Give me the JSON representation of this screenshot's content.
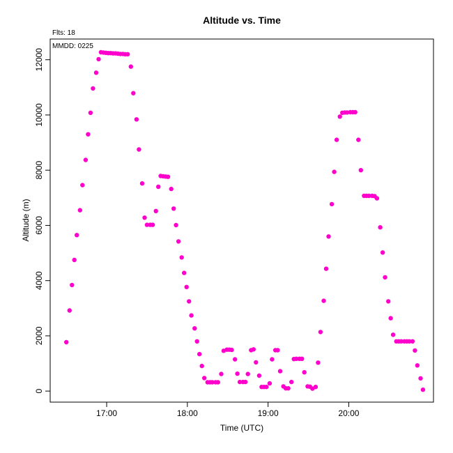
{
  "chart_data": {
    "type": "scatter",
    "title": "Altitude  vs. Time",
    "xlabel": "Time (UTC)",
    "ylabel": "Altitude (m)",
    "corner_label": "Flts: 18",
    "annotation": "MMDD: 0225",
    "x_unit": "hours UTC (decimal)",
    "xlim": [
      16.3,
      21.05
    ],
    "ylim": [
      -400,
      12750
    ],
    "x_ticks": [
      {
        "value": 17,
        "label": "17:00"
      },
      {
        "value": 18,
        "label": "18:00"
      },
      {
        "value": 19,
        "label": "19:00"
      },
      {
        "value": 20,
        "label": "20:00"
      }
    ],
    "y_ticks": [
      {
        "value": 0,
        "label": "0"
      },
      {
        "value": 2000,
        "label": "2000"
      },
      {
        "value": 4000,
        "label": "4000"
      },
      {
        "value": 6000,
        "label": "6000"
      },
      {
        "value": 8000,
        "label": "8000"
      },
      {
        "value": 10000,
        "label": "10000"
      },
      {
        "value": 12000,
        "label": "12000"
      }
    ],
    "grid": false,
    "marker_color": "#ff00cc",
    "series": [
      {
        "points": [
          [
            16.5,
            1770
          ],
          [
            16.54,
            2920
          ],
          [
            16.57,
            3840
          ],
          [
            16.6,
            4750
          ],
          [
            16.63,
            5650
          ],
          [
            16.67,
            6550
          ],
          [
            16.7,
            7460
          ],
          [
            16.74,
            8370
          ],
          [
            16.77,
            9300
          ],
          [
            16.8,
            10080
          ],
          [
            16.83,
            10960
          ],
          [
            16.87,
            11530
          ],
          [
            16.9,
            12020
          ],
          [
            16.93,
            12270
          ],
          [
            16.96,
            12260
          ],
          [
            16.99,
            12250
          ],
          [
            17.02,
            12240
          ],
          [
            17.05,
            12240
          ],
          [
            17.08,
            12230
          ],
          [
            17.11,
            12230
          ],
          [
            17.14,
            12220
          ],
          [
            17.17,
            12210
          ],
          [
            17.2,
            12210
          ],
          [
            17.23,
            12200
          ],
          [
            17.26,
            12200
          ],
          [
            17.3,
            11750
          ],
          [
            17.33,
            10790
          ],
          [
            17.37,
            9840
          ],
          [
            17.4,
            8750
          ],
          [
            17.44,
            7520
          ],
          [
            17.47,
            6280
          ],
          [
            17.5,
            6020
          ],
          [
            17.54,
            6020
          ],
          [
            17.57,
            6020
          ],
          [
            17.61,
            6520
          ],
          [
            17.64,
            7400
          ],
          [
            17.67,
            7790
          ],
          [
            17.7,
            7780
          ],
          [
            17.73,
            7770
          ],
          [
            17.76,
            7760
          ],
          [
            17.8,
            7320
          ],
          [
            17.83,
            6610
          ],
          [
            17.86,
            6010
          ],
          [
            17.89,
            5420
          ],
          [
            17.93,
            4840
          ],
          [
            17.96,
            4280
          ],
          [
            17.99,
            3770
          ],
          [
            18.02,
            3250
          ],
          [
            18.05,
            2740
          ],
          [
            18.09,
            2270
          ],
          [
            18.12,
            1800
          ],
          [
            18.15,
            1340
          ],
          [
            18.18,
            910
          ],
          [
            18.21,
            470
          ],
          [
            18.25,
            320
          ],
          [
            18.28,
            320
          ],
          [
            18.31,
            320
          ],
          [
            18.35,
            320
          ],
          [
            18.38,
            320
          ],
          [
            18.42,
            620
          ],
          [
            18.45,
            1460
          ],
          [
            18.49,
            1500
          ],
          [
            18.52,
            1500
          ],
          [
            18.55,
            1490
          ],
          [
            18.59,
            1150
          ],
          [
            18.62,
            630
          ],
          [
            18.65,
            330
          ],
          [
            18.69,
            330
          ],
          [
            18.72,
            330
          ],
          [
            18.75,
            620
          ],
          [
            18.79,
            1480
          ],
          [
            18.82,
            1510
          ],
          [
            18.85,
            1040
          ],
          [
            18.89,
            560
          ],
          [
            18.92,
            150
          ],
          [
            18.95,
            150
          ],
          [
            18.98,
            150
          ],
          [
            19.02,
            280
          ],
          [
            19.05,
            1150
          ],
          [
            19.09,
            1480
          ],
          [
            19.12,
            1480
          ],
          [
            19.15,
            720
          ],
          [
            19.19,
            170
          ],
          [
            19.22,
            100
          ],
          [
            19.25,
            100
          ],
          [
            19.29,
            330
          ],
          [
            19.32,
            1160
          ],
          [
            19.35,
            1170
          ],
          [
            19.39,
            1170
          ],
          [
            19.42,
            1170
          ],
          [
            19.45,
            680
          ],
          [
            19.49,
            170
          ],
          [
            19.52,
            160
          ],
          [
            19.55,
            90
          ],
          [
            19.59,
            150
          ],
          [
            19.62,
            1030
          ],
          [
            19.65,
            2140
          ],
          [
            19.69,
            3270
          ],
          [
            19.72,
            4430
          ],
          [
            19.75,
            5600
          ],
          [
            19.79,
            6770
          ],
          [
            19.82,
            7940
          ],
          [
            19.85,
            9100
          ],
          [
            19.89,
            9940
          ],
          [
            19.92,
            10080
          ],
          [
            19.95,
            10090
          ],
          [
            19.98,
            10090
          ],
          [
            20.02,
            10100
          ],
          [
            20.05,
            10100
          ],
          [
            20.08,
            10100
          ],
          [
            20.12,
            9100
          ],
          [
            20.15,
            8000
          ],
          [
            20.19,
            7070
          ],
          [
            20.22,
            7070
          ],
          [
            20.25,
            7070
          ],
          [
            20.29,
            7070
          ],
          [
            20.32,
            7060
          ],
          [
            20.35,
            6980
          ],
          [
            20.39,
            5930
          ],
          [
            20.42,
            5020
          ],
          [
            20.45,
            4120
          ],
          [
            20.49,
            3250
          ],
          [
            20.52,
            2640
          ],
          [
            20.55,
            2040
          ],
          [
            20.59,
            1800
          ],
          [
            20.62,
            1800
          ],
          [
            20.65,
            1800
          ],
          [
            20.69,
            1800
          ],
          [
            20.72,
            1800
          ],
          [
            20.75,
            1800
          ],
          [
            20.79,
            1800
          ],
          [
            20.82,
            1470
          ],
          [
            20.85,
            930
          ],
          [
            20.89,
            460
          ],
          [
            20.92,
            50
          ]
        ]
      }
    ]
  }
}
